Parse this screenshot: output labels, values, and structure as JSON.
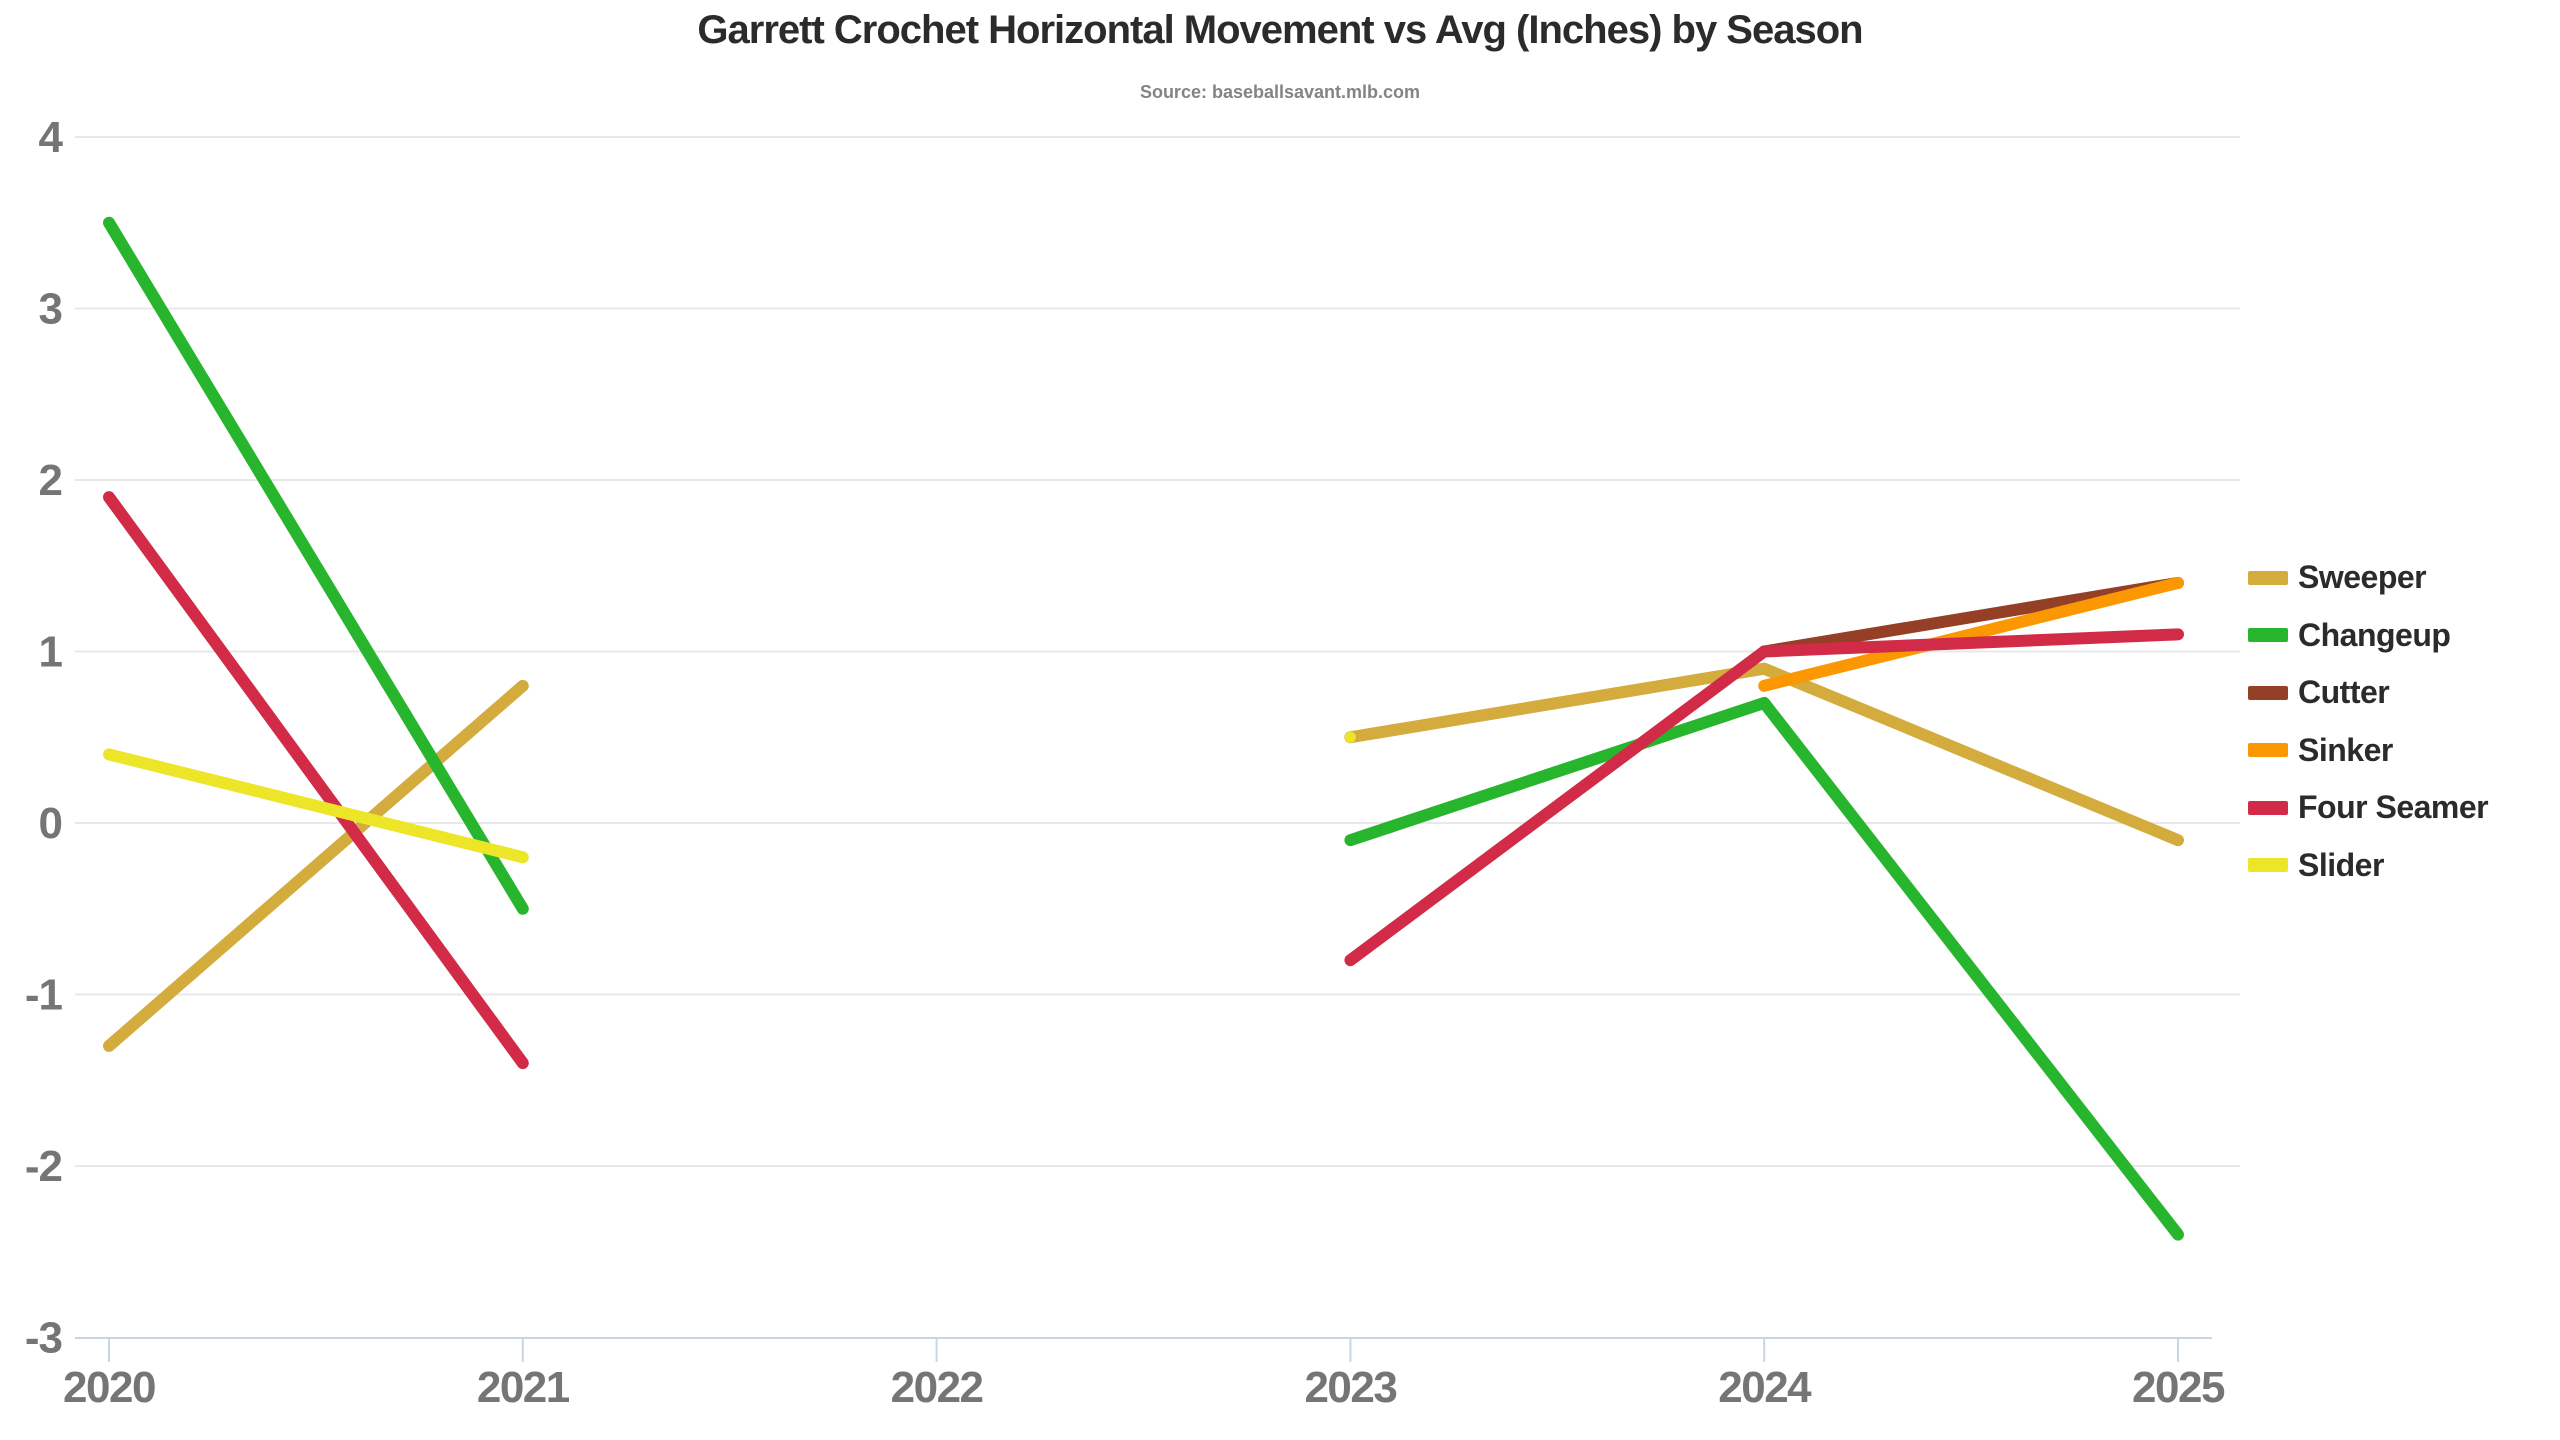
{
  "chart": {
    "title": "Garrett Crochet Horizontal Movement vs Avg (Inches) by Season",
    "subtitle": "Source: baseballsavant.mlb.com"
  },
  "colors": {
    "grid": "#e8e8e8",
    "axis_line": "#c9d6e2",
    "axis_text": "#757575",
    "title_text": "#2b2b2b",
    "subtitle_text": "#848484"
  },
  "chart_data": {
    "type": "line",
    "title": "Garrett Crochet Horizontal Movement vs Avg (Inches) by Season",
    "subtitle": "Source: baseballsavant.mlb.com",
    "xlabel": "",
    "ylabel": "",
    "x": [
      2020,
      2021,
      2022,
      2023,
      2024,
      2025
    ],
    "ylim": [
      -3,
      4
    ],
    "yticks": [
      4,
      3,
      2,
      1,
      0,
      -1,
      -2,
      -3
    ],
    "grid": "horizontal",
    "legend_position": "right",
    "note": "no data for 2022; lines have a gap between 2021 and 2023",
    "series": [
      {
        "name": "Sweeper",
        "color": "#d4ab3d",
        "points": [
          [
            2020,
            -1.3
          ],
          [
            2021,
            0.8
          ],
          [
            2023,
            0.5
          ],
          [
            2024,
            0.9
          ],
          [
            2025,
            -0.1
          ]
        ]
      },
      {
        "name": "Changeup",
        "color": "#28b52e",
        "points": [
          [
            2020,
            3.5
          ],
          [
            2021,
            -0.5
          ],
          [
            2023,
            -0.1
          ],
          [
            2024,
            0.7
          ],
          [
            2025,
            -2.4
          ]
        ]
      },
      {
        "name": "Cutter",
        "color": "#943f26",
        "points": [
          [
            2024,
            1.0
          ],
          [
            2025,
            1.4
          ]
        ]
      },
      {
        "name": "Sinker",
        "color": "#fb9700",
        "points": [
          [
            2024,
            0.8
          ],
          [
            2025,
            1.4
          ]
        ]
      },
      {
        "name": "Four Seamer",
        "color": "#d22b47",
        "points": [
          [
            2020,
            1.9
          ],
          [
            2021,
            -1.4
          ],
          [
            2023,
            -0.8
          ],
          [
            2024,
            1.0
          ],
          [
            2025,
            1.1
          ]
        ]
      },
      {
        "name": "Slider",
        "color": "#ece528",
        "points": [
          [
            2020,
            0.4
          ],
          [
            2021,
            -0.2
          ],
          [
            2023,
            0.5
          ]
        ]
      }
    ]
  }
}
